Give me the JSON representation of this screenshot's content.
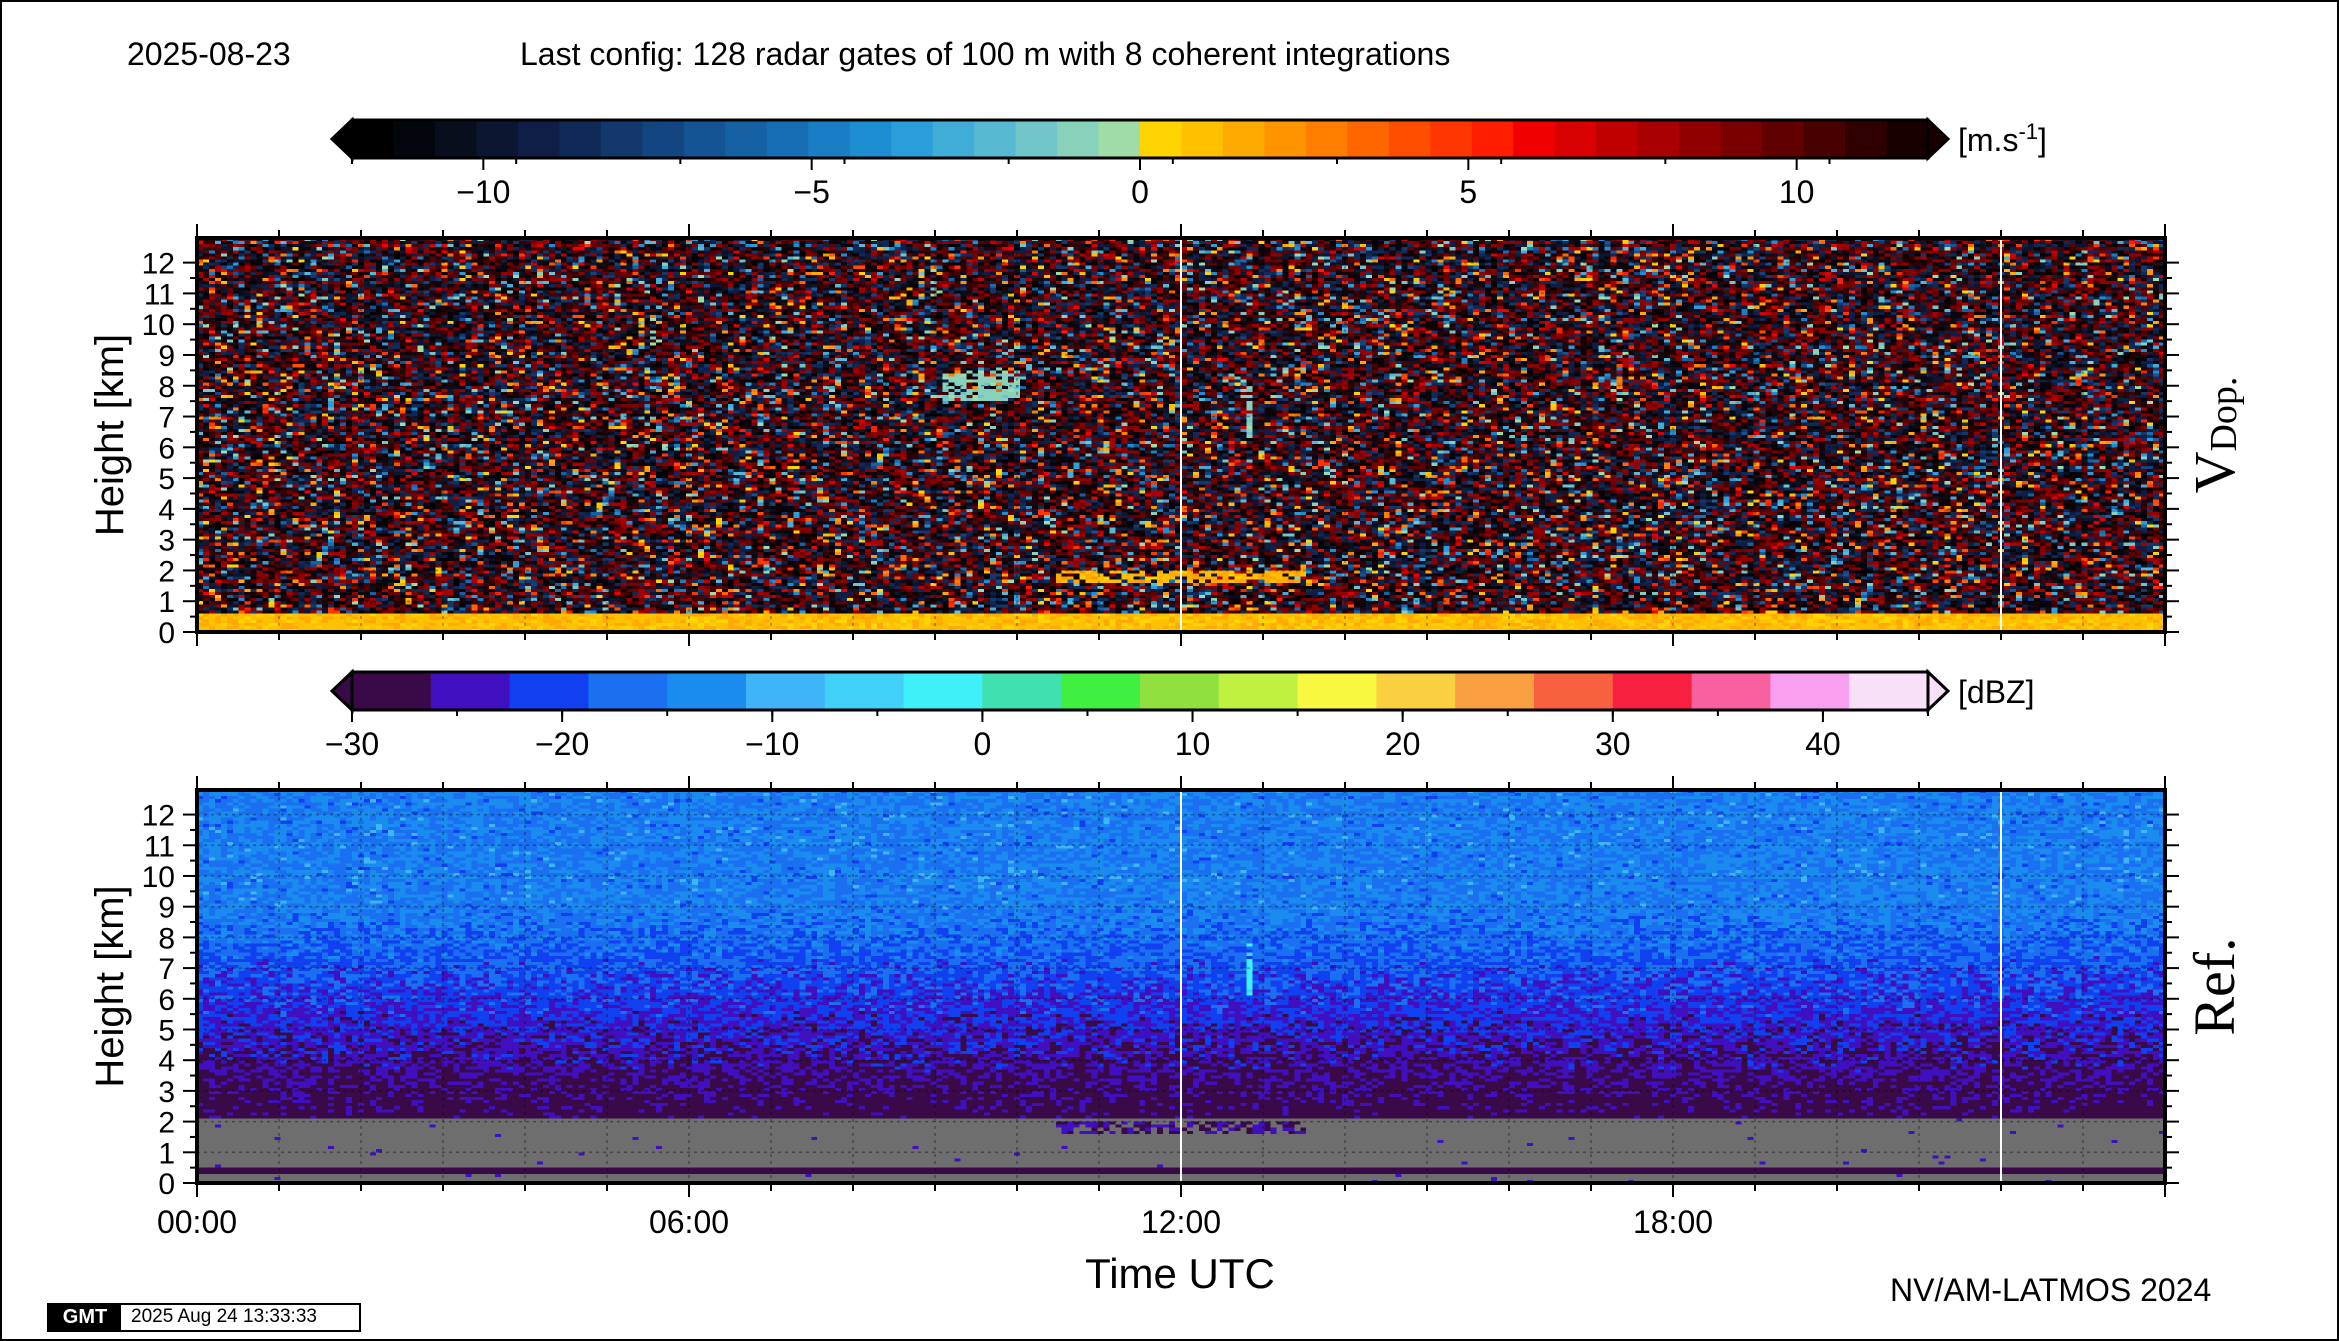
{
  "header": {
    "date": "2025-08-23",
    "config": "Last config: 128 radar gates of 100 m with 8 coherent integrations"
  },
  "footer": {
    "credit": "NV/AM-LATMOS 2024",
    "gmt_logo": "GMT",
    "timestamp": "2025 Aug 24 13:33:33"
  },
  "chart_data": [
    {
      "type": "heatmap",
      "panel_label": "V",
      "panel_label_sub": "Dop.",
      "ylabel": "Height [km]",
      "ylim": [
        0,
        12.8
      ],
      "yticks": [
        0,
        1,
        2,
        3,
        4,
        5,
        6,
        7,
        8,
        9,
        10,
        11,
        12
      ],
      "xlim_hours": [
        0,
        24
      ],
      "colorbar": {
        "unit": "[m.s-1]",
        "unit_base": "[m.s",
        "unit_exp": "-1",
        "unit_end": "]",
        "range": [
          -12,
          12
        ],
        "ticks": [
          -10,
          -5,
          0,
          5,
          10
        ],
        "tick_labels": [
          "−10",
          "−5",
          "0",
          "5",
          "10"
        ],
        "colors": [
          "#000000",
          "#04060e",
          "#080e1c",
          "#0b1630",
          "#0e1e44",
          "#102a58",
          "#12386c",
          "#134680",
          "#145494",
          "#1660a4",
          "#176eb4",
          "#1a7ec4",
          "#1d8ed2",
          "#2a9ed8",
          "#40acd8",
          "#58bad2",
          "#70c6c8",
          "#88d2bc",
          "#a0dca8",
          "#ffd400",
          "#ffc000",
          "#ffaa00",
          "#ff9400",
          "#ff7e00",
          "#ff6600",
          "#ff4e00",
          "#ff3600",
          "#ff1e00",
          "#f00000",
          "#d80000",
          "#c00000",
          "#a80000",
          "#900000",
          "#780000",
          "#600000",
          "#480000",
          "#300000",
          "#180000"
        ]
      },
      "features": [
        {
          "desc": "near-ground echo",
          "height_km": [
            0,
            0.6
          ],
          "time_h": [
            0,
            24
          ]
        },
        {
          "desc": "thin layer",
          "height_km": [
            1.6,
            2.0
          ],
          "time_h": [
            10.5,
            13.5
          ]
        },
        {
          "desc": "cloud patch",
          "height_km": [
            7.5,
            8.5
          ],
          "time_h": [
            9.1,
            10.0
          ]
        },
        {
          "desc": "streak",
          "height_km": [
            6.0,
            8.0
          ],
          "time_h": [
            12.8,
            12.9
          ]
        }
      ]
    },
    {
      "type": "heatmap",
      "panel_label": "Ref.",
      "ylabel": "Height [km]",
      "xlabel": "Time UTC",
      "ylim": [
        0,
        12.8
      ],
      "yticks": [
        0,
        1,
        2,
        3,
        4,
        5,
        6,
        7,
        8,
        9,
        10,
        11,
        12
      ],
      "xlim_hours": [
        0,
        24
      ],
      "xticks_hours": [
        0,
        6,
        12,
        18
      ],
      "xtick_labels": [
        "00:00",
        "06:00",
        "12:00",
        "18:00"
      ],
      "colorbar": {
        "unit": "[dBZ]",
        "range": [
          -30,
          45
        ],
        "ticks": [
          -30,
          -20,
          -10,
          0,
          10,
          20,
          30,
          40
        ],
        "tick_labels": [
          "−30",
          "−20",
          "−10",
          "0",
          "10",
          "20",
          "30",
          "40"
        ],
        "colors": [
          "#3a0a48",
          "#4010c0",
          "#1040f0",
          "#1a70f0",
          "#1a8cf0",
          "#40b4f8",
          "#40d0f8",
          "#40f0f8",
          "#40e0b0",
          "#40f040",
          "#90e040",
          "#c0f040",
          "#f8f840",
          "#f8d040",
          "#f8a040",
          "#f86040",
          "#f82040",
          "#f860a0",
          "#f8a0f0",
          "#f8e0f8"
        ]
      },
      "features": [
        {
          "desc": "no-signal band",
          "height_km": [
            0,
            2.1
          ],
          "time_h": [
            0,
            24
          ]
        },
        {
          "desc": "thin layer",
          "height_km": [
            1.6,
            2.0
          ],
          "time_h": [
            10.5,
            13.5
          ]
        },
        {
          "desc": "streak",
          "height_km": [
            6.0,
            7.8
          ],
          "time_h": [
            12.8,
            12.9
          ]
        }
      ]
    }
  ]
}
